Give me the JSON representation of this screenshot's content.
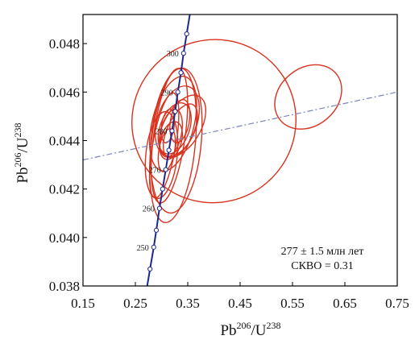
{
  "chart_data": {
    "type": "scatter",
    "title": "",
    "xlabel": {
      "base": "Pb",
      "sup1": "206",
      "sep": "/U",
      "sup2": "238"
    },
    "ylabel": {
      "base": "Pb",
      "sup1": "206",
      "sep": "/U",
      "sup2": "238"
    },
    "xlim": [
      0.15,
      0.75
    ],
    "ylim": [
      0.038,
      0.0492
    ],
    "x_ticks": [
      0.15,
      0.25,
      0.35,
      0.45,
      0.55,
      0.65,
      0.75
    ],
    "x_tick_labels": [
      "0.15",
      "0.25",
      "0.35",
      "0.45",
      "0.55",
      "0.65",
      "0.75"
    ],
    "y_ticks": [
      0.038,
      0.04,
      0.042,
      0.044,
      0.046,
      0.048
    ],
    "y_tick_labels": [
      "0.038",
      "0.040",
      "0.042",
      "0.044",
      "0.046",
      "0.048"
    ],
    "annotation": {
      "line1": "277 ± 1.5 млн лет",
      "line2": "СКВО = 0.31"
    },
    "colors": {
      "ellipse": "#d8321e",
      "concordia": "#1c2a8c",
      "regression": "#7a86b8",
      "marker_fill": "#ffffff"
    },
    "concordia": {
      "points": [
        {
          "x": 0.278,
          "y": 0.0387
        },
        {
          "x": 0.285,
          "y": 0.0396,
          "label": "250"
        },
        {
          "x": 0.29,
          "y": 0.0403
        },
        {
          "x": 0.296,
          "y": 0.0412,
          "label": "260"
        },
        {
          "x": 0.302,
          "y": 0.042
        },
        {
          "x": 0.308,
          "y": 0.0428,
          "label": "270"
        },
        {
          "x": 0.314,
          "y": 0.0436
        },
        {
          "x": 0.32,
          "y": 0.0444,
          "label": "280"
        },
        {
          "x": 0.326,
          "y": 0.0452
        },
        {
          "x": 0.331,
          "y": 0.046,
          "label": "290"
        },
        {
          "x": 0.337,
          "y": 0.0468
        },
        {
          "x": 0.342,
          "y": 0.0476,
          "label": "300"
        },
        {
          "x": 0.348,
          "y": 0.0484
        }
      ]
    },
    "regression_line": {
      "x": [
        0.15,
        0.75
      ],
      "y": [
        0.0432,
        0.046
      ]
    },
    "ellipses": [
      {
        "cx": 0.305,
        "cy": 0.0438,
        "rx": 0.022,
        "ry": 0.0022,
        "angle": 80
      },
      {
        "cx": 0.315,
        "cy": 0.0442,
        "rx": 0.03,
        "ry": 0.0028,
        "angle": 82
      },
      {
        "cx": 0.322,
        "cy": 0.0447,
        "rx": 0.04,
        "ry": 0.002,
        "angle": 76
      },
      {
        "cx": 0.33,
        "cy": 0.0448,
        "rx": 0.038,
        "ry": 0.0015,
        "angle": 72
      },
      {
        "cx": 0.325,
        "cy": 0.0445,
        "rx": 0.028,
        "ry": 0.0011,
        "angle": 70
      },
      {
        "cx": 0.318,
        "cy": 0.0443,
        "rx": 0.02,
        "ry": 0.001,
        "angle": 78
      },
      {
        "cx": 0.328,
        "cy": 0.044,
        "rx": 0.048,
        "ry": 0.003,
        "angle": 85
      },
      {
        "cx": 0.31,
        "cy": 0.0436,
        "rx": 0.015,
        "ry": 0.0009,
        "angle": 80
      },
      {
        "cx": 0.336,
        "cy": 0.0444,
        "rx": 0.025,
        "ry": 0.0012,
        "angle": 65
      },
      {
        "cx": 0.34,
        "cy": 0.0446,
        "rx": 0.035,
        "ry": 0.0014,
        "angle": 60
      },
      {
        "cx": 0.3,
        "cy": 0.0434,
        "rx": 0.03,
        "ry": 0.0018,
        "angle": 84
      },
      {
        "cx": 0.318,
        "cy": 0.044,
        "rx": 0.02,
        "ry": 0.0008,
        "angle": 74
      },
      {
        "cx": 0.335,
        "cy": 0.0448,
        "rx": 0.018,
        "ry": 0.0009,
        "angle": 80
      },
      {
        "cx": 0.312,
        "cy": 0.0446,
        "rx": 0.012,
        "ry": 0.0007,
        "angle": 82
      },
      {
        "cx": 0.322,
        "cy": 0.0438,
        "rx": 0.042,
        "ry": 0.0032,
        "angle": 84
      },
      {
        "cx": 0.4,
        "cy": 0.0448,
        "rx": 0.155,
        "ry": 0.0034,
        "angle": 35
      },
      {
        "cx": 0.58,
        "cy": 0.0458,
        "rx": 0.055,
        "ry": 0.0015,
        "angle": 40
      }
    ]
  }
}
